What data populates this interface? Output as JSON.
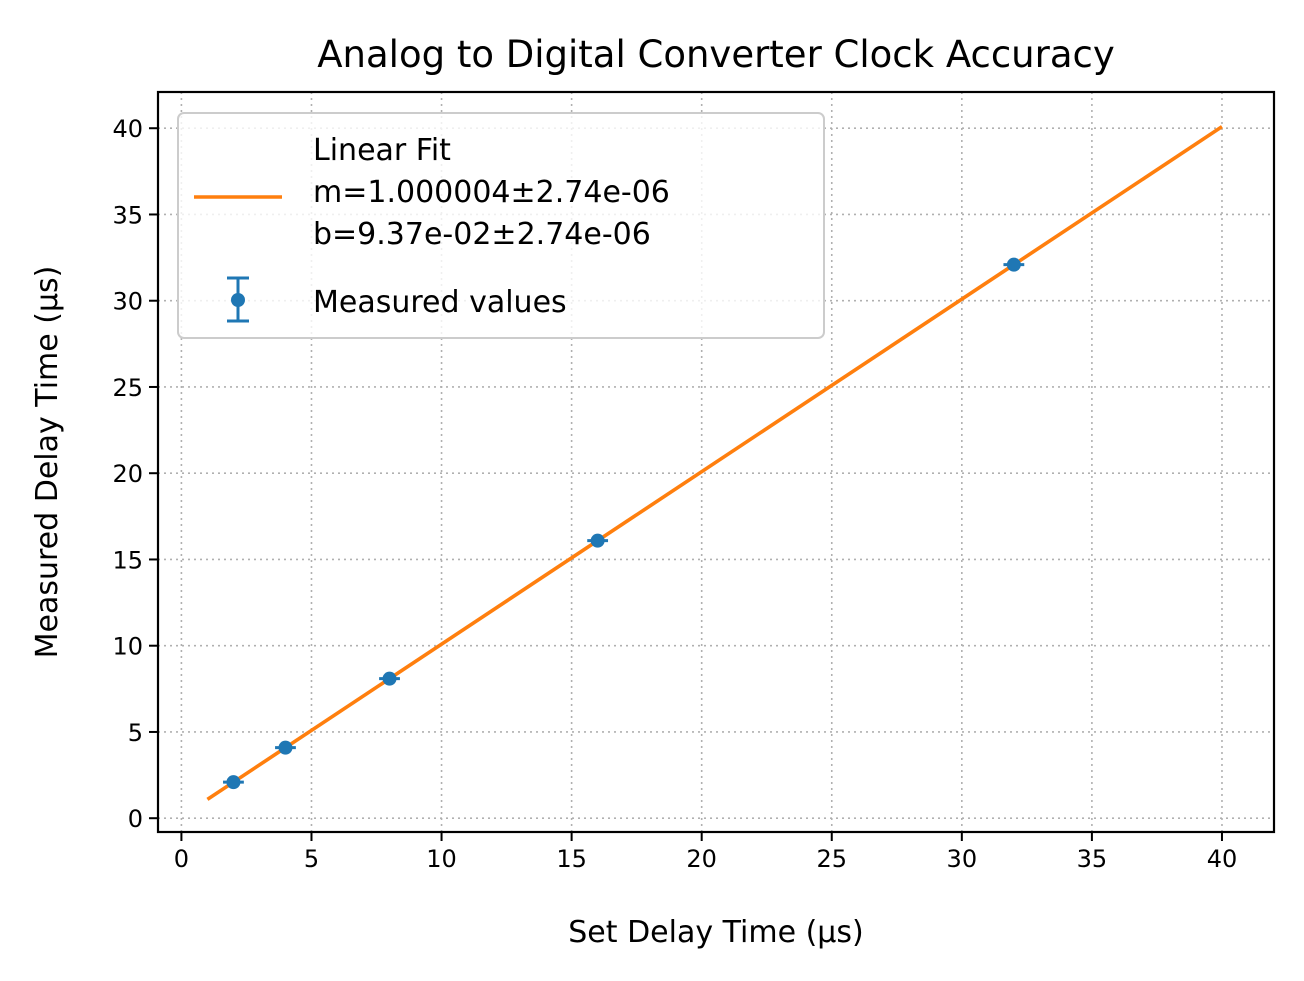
{
  "chart_data": {
    "type": "scatter",
    "title": "Analog to Digital Converter Clock Accuracy",
    "xlabel": "Set Delay Time (µs)",
    "ylabel": "Measured Delay Time (µs)",
    "xlim": [
      -0.9,
      42
    ],
    "ylim": [
      -0.8,
      42.1
    ],
    "xticks": [
      0,
      5,
      10,
      15,
      20,
      25,
      30,
      35,
      40
    ],
    "yticks": [
      0,
      5,
      10,
      15,
      20,
      25,
      30,
      35,
      40
    ],
    "grid": true,
    "legend_position": "upper-left",
    "series": [
      {
        "name": "Measured values",
        "kind": "errorbar",
        "color": "#1f77b4",
        "x": [
          2,
          4,
          8,
          16,
          32
        ],
        "y": [
          2.09,
          4.09,
          8.09,
          16.09,
          32.09
        ],
        "xerr": 0.4
      },
      {
        "name": "Linear Fit",
        "kind": "line",
        "color": "#ff7f0e",
        "x": [
          1,
          40
        ],
        "y": [
          1.09,
          40.09
        ]
      }
    ],
    "legend": [
      {
        "kind": "line",
        "lines": [
          "Linear Fit",
          "m=1.000004±2.74e-06",
          "b=9.37e-02±2.74e-06"
        ]
      },
      {
        "kind": "errorbar",
        "lines": [
          "Measured values"
        ]
      }
    ]
  }
}
